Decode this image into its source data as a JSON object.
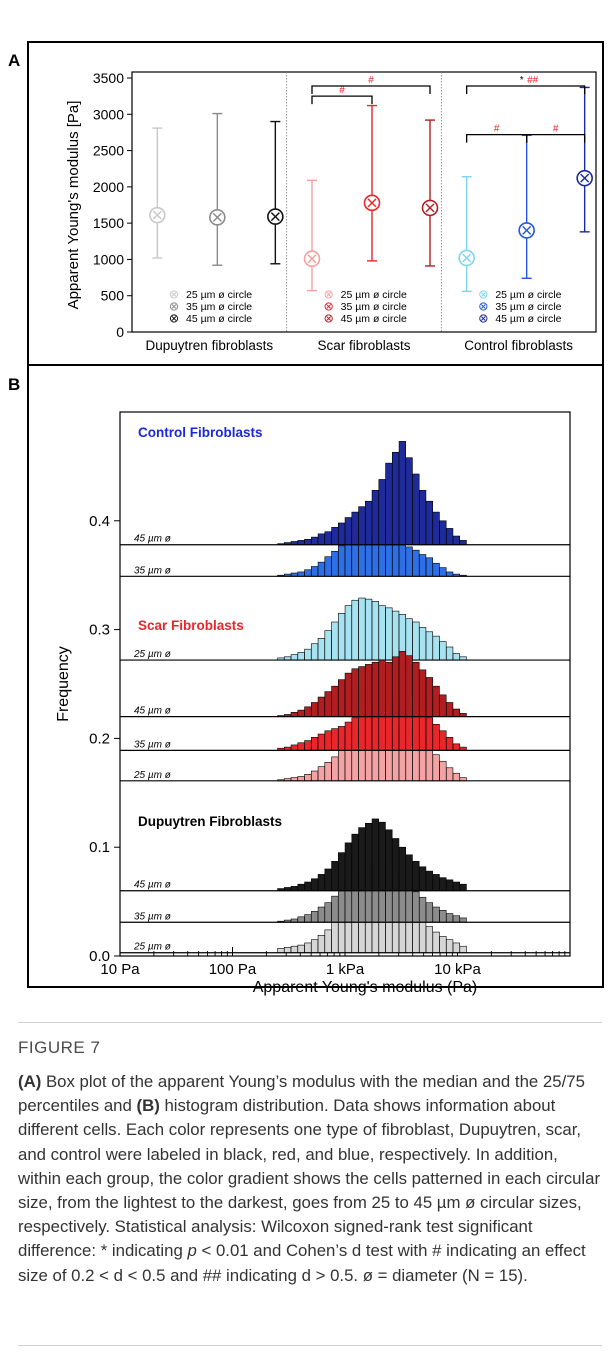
{
  "figure": {
    "panel_a_label": "A",
    "panel_b_label": "B"
  },
  "chart_data": [
    {
      "type": "scatter",
      "panel": "A",
      "ylabel": "Apparent Young's modulus [Pa]",
      "ylim": [
        0,
        3500
      ],
      "yticks": [
        0,
        500,
        1000,
        1500,
        2000,
        2500,
        3000,
        3500
      ],
      "groups": [
        {
          "name": "Dupuytren fibroblasts",
          "legend": [
            "25 µm ø circle",
            "35 µm ø circle",
            "45 µm ø circle"
          ],
          "colors": [
            "#c8c8c8",
            "#8a8a8a",
            "#111111"
          ],
          "median": [
            1610,
            1580,
            1590
          ],
          "q25": [
            1020,
            920,
            940
          ],
          "q75": [
            2810,
            3010,
            2900
          ]
        },
        {
          "name": "Scar fibroblasts",
          "legend": [
            "25 µm ø circle",
            "35 µm ø circle",
            "45 µm ø circle"
          ],
          "colors": [
            "#f4a0a0",
            "#e8262b",
            "#b41e22"
          ],
          "median": [
            1010,
            1780,
            1710
          ],
          "q25": [
            570,
            980,
            910
          ],
          "q75": [
            2090,
            3120,
            2920
          ]
        },
        {
          "name": "Control fibroblasts",
          "legend": [
            "25 µm ø circle",
            "35 µm ø circle",
            "45 µm ø circle"
          ],
          "colors": [
            "#7fd6ee",
            "#2457e0",
            "#1a2a9a"
          ],
          "median": [
            1020,
            1400,
            2120
          ],
          "q25": [
            560,
            740,
            1380
          ],
          "q75": [
            2140,
            2710,
            3370
          ]
        }
      ],
      "annotations": [
        {
          "text": "#",
          "group": 1,
          "from": 0,
          "to": 1,
          "level": 3250
        },
        {
          "text": "#",
          "group": 1,
          "from": 0,
          "to": 2,
          "level": 3390
        },
        {
          "text": "*",
          "group": 2,
          "from": 0,
          "to": 2,
          "level": 3390,
          "color": "#000000"
        },
        {
          "text": "##",
          "group": 2,
          "from": 0,
          "to": 2,
          "level": 3390,
          "color": "#e8262b"
        },
        {
          "text": "#",
          "group": 2,
          "from": 0,
          "to": 1,
          "level": 2720
        },
        {
          "text": "#",
          "group": 2,
          "from": 1,
          "to": 2,
          "level": 2720
        }
      ]
    },
    {
      "type": "bar",
      "panel": "B",
      "xlabel": "Apparent Young's modulus (Pa)",
      "ylabel": "Frequency",
      "x_scale": "log",
      "xlim": [
        10,
        100000
      ],
      "xticks": [
        "10 Pa",
        "100 Pa",
        "1 kPa",
        "10 kPa"
      ],
      "ylim": [
        0,
        0.5
      ],
      "yticks": [
        "0.0",
        "0.1",
        "0.2",
        "0.3",
        "0.4"
      ],
      "bin_centers_log10": [
        2.43,
        2.49,
        2.55,
        2.61,
        2.67,
        2.73,
        2.79,
        2.85,
        2.91,
        2.97,
        3.03,
        3.09,
        3.15,
        3.21,
        3.27,
        3.33,
        3.39,
        3.45,
        3.51,
        3.57,
        3.63,
        3.69,
        3.75,
        3.81,
        3.87,
        3.93,
        3.99,
        4.05
      ],
      "groups": [
        {
          "title": "Control Fibroblasts",
          "title_color": "#1a2ad8",
          "series": [
            {
              "name": "25 µm ø",
              "baseline": 0.272,
              "color": "#a6e2f0",
              "values": [
                0.002,
                0.003,
                0.005,
                0.007,
                0.01,
                0.015,
                0.02,
                0.027,
                0.035,
                0.043,
                0.05,
                0.055,
                0.057,
                0.056,
                0.054,
                0.05,
                0.048,
                0.045,
                0.042,
                0.038,
                0.035,
                0.03,
                0.026,
                0.022,
                0.017,
                0.012,
                0.006,
                0.003
              ]
            },
            {
              "name": "35 µm ø",
              "baseline": 0.349,
              "color": "#2f6fe6",
              "values": [
                0.001,
                0.002,
                0.003,
                0.004,
                0.006,
                0.009,
                0.013,
                0.018,
                0.023,
                0.028,
                0.035,
                0.038,
                0.036,
                0.035,
                0.037,
                0.038,
                0.035,
                0.033,
                0.03,
                0.027,
                0.024,
                0.02,
                0.017,
                0.012,
                0.008,
                0.004,
                0.002,
                0.001
              ]
            },
            {
              "name": "45 µm ø",
              "baseline": 0.378,
              "color": "#1f2b9a",
              "values": [
                0.001,
                0.002,
                0.003,
                0.004,
                0.005,
                0.007,
                0.01,
                0.012,
                0.016,
                0.02,
                0.025,
                0.03,
                0.035,
                0.04,
                0.05,
                0.06,
                0.075,
                0.085,
                0.095,
                0.08,
                0.065,
                0.05,
                0.04,
                0.03,
                0.022,
                0.015,
                0.008,
                0.004
              ]
            }
          ]
        },
        {
          "title": "Scar Fibroblasts",
          "title_color": "#e8262b",
          "series": [
            {
              "name": "25 µm ø",
              "baseline": 0.161,
              "color": "#f3a3a3",
              "values": [
                0.001,
                0.002,
                0.003,
                0.004,
                0.006,
                0.009,
                0.013,
                0.017,
                0.022,
                0.03,
                0.04,
                0.05,
                0.058,
                0.062,
                0.06,
                0.058,
                0.055,
                0.052,
                0.05,
                0.048,
                0.044,
                0.038,
                0.03,
                0.024,
                0.018,
                0.012,
                0.007,
                0.003
              ]
            },
            {
              "name": "35 µm ø",
              "baseline": 0.189,
              "color": "#e8262b",
              "values": [
                0.002,
                0.003,
                0.005,
                0.007,
                0.009,
                0.012,
                0.015,
                0.018,
                0.02,
                0.022,
                0.026,
                0.03,
                0.033,
                0.036,
                0.04,
                0.042,
                0.044,
                0.045,
                0.046,
                0.047,
                0.042,
                0.036,
                0.03,
                0.024,
                0.018,
                0.012,
                0.006,
                0.003
              ]
            },
            {
              "name": "45 µm ø",
              "baseline": 0.22,
              "color": "#b01e22",
              "values": [
                0.001,
                0.002,
                0.004,
                0.006,
                0.009,
                0.013,
                0.018,
                0.023,
                0.028,
                0.034,
                0.04,
                0.044,
                0.046,
                0.048,
                0.05,
                0.052,
                0.05,
                0.055,
                0.06,
                0.056,
                0.05,
                0.043,
                0.036,
                0.028,
                0.02,
                0.013,
                0.007,
                0.003
              ]
            }
          ]
        },
        {
          "title": "Dupuytren Fibroblasts",
          "title_color": "#000000",
          "series": [
            {
              "name": "25 µm ø",
              "baseline": 0.003,
              "color": "#d6d6d6",
              "values": [
                0.004,
                0.005,
                0.006,
                0.007,
                0.009,
                0.012,
                0.016,
                0.021,
                0.028,
                0.036,
                0.045,
                0.055,
                0.062,
                0.068,
                0.072,
                0.07,
                0.066,
                0.06,
                0.053,
                0.045,
                0.037,
                0.03,
                0.024,
                0.019,
                0.015,
                0.012,
                0.009,
                0.006
              ]
            },
            {
              "name": "35 µm ø",
              "baseline": 0.031,
              "color": "#8c8c8c",
              "values": [
                0.001,
                0.002,
                0.003,
                0.005,
                0.007,
                0.01,
                0.014,
                0.018,
                0.024,
                0.03,
                0.036,
                0.042,
                0.048,
                0.053,
                0.057,
                0.055,
                0.05,
                0.045,
                0.04,
                0.034,
                0.028,
                0.023,
                0.018,
                0.014,
                0.011,
                0.008,
                0.006,
                0.004
              ]
            },
            {
              "name": "45 µm ø",
              "baseline": 0.06,
              "color": "#1a1a1a",
              "values": [
                0.002,
                0.003,
                0.004,
                0.006,
                0.008,
                0.011,
                0.015,
                0.02,
                0.027,
                0.035,
                0.044,
                0.052,
                0.058,
                0.062,
                0.066,
                0.063,
                0.056,
                0.048,
                0.04,
                0.033,
                0.027,
                0.022,
                0.018,
                0.015,
                0.012,
                0.01,
                0.008,
                0.006
              ]
            }
          ]
        }
      ]
    }
  ],
  "caption": {
    "label": "FIGURE 7",
    "parts": [
      {
        "t": "(A)",
        "b": true
      },
      {
        "t": " Box plot of the apparent Young’s modulus with the median and the 25/75 percentiles and "
      },
      {
        "t": "(B)",
        "b": true
      },
      {
        "t": " histogram distribution. Data shows information about different cells. Each color represents one type of fibroblast, Dupuytren, scar, and control were labeled in black, red, and blue, respectively. In addition, within each group, the color gradient shows the cells patterned in each circular size, from the lightest to the darkest, goes from 25 to 45 µm ø circular sizes, respectively. Statistical analysis: Wilcoxon signed-rank test significant difference: * indicating "
      },
      {
        "t": "p",
        "i": true
      },
      {
        "t": " < 0.01 and Cohen’s d test with # indicating an effect size of 0.2 < d < 0.5 and ## indicating d > 0.5. ø = diameter (N = 15)."
      }
    ]
  }
}
